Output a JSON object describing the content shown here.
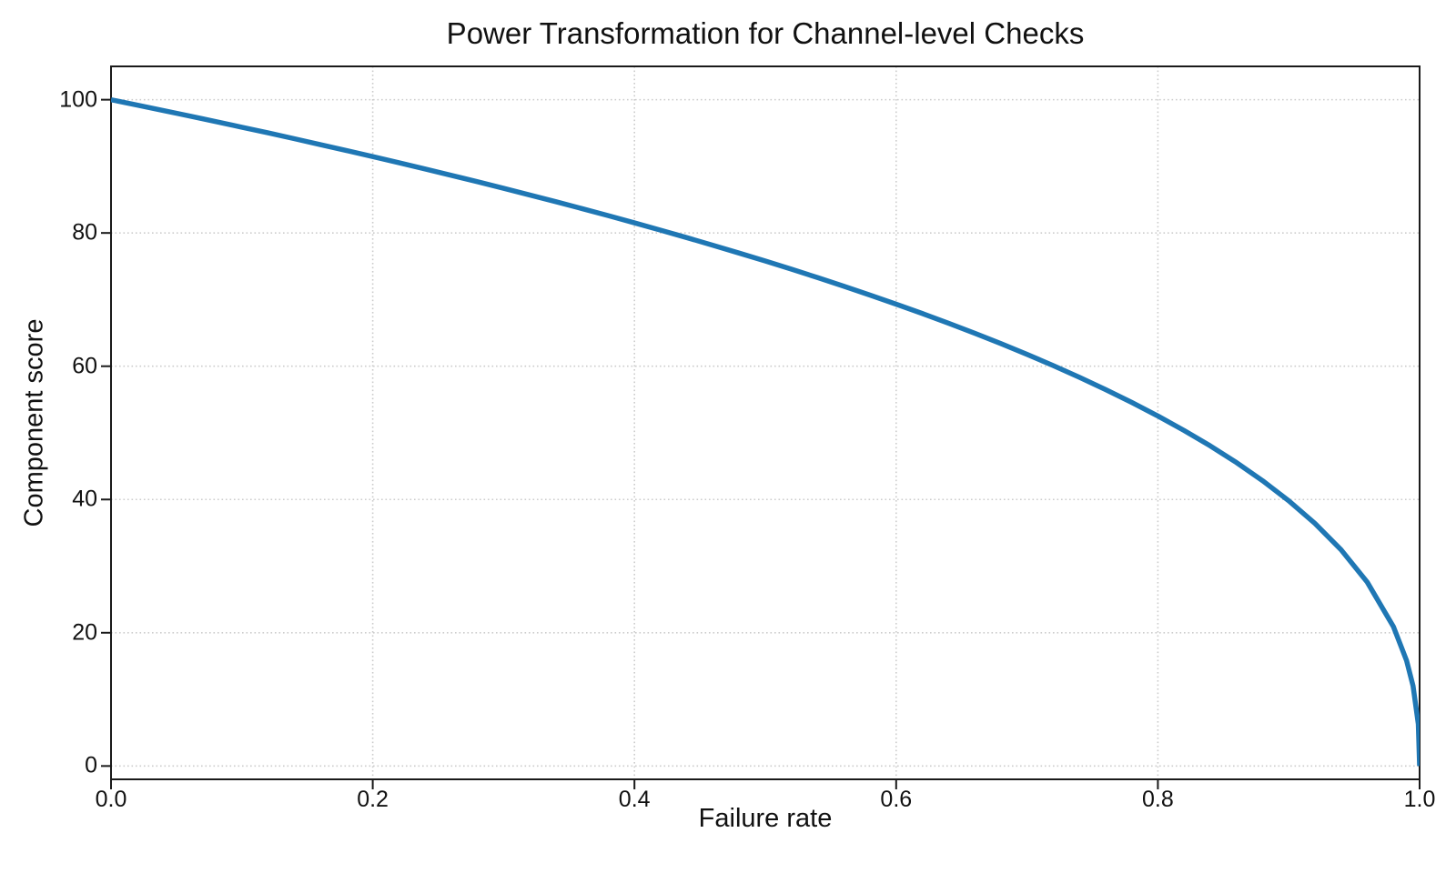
{
  "chart_data": {
    "type": "line",
    "title": "Power Transformation for Channel-level Checks",
    "xlabel": "Failure rate",
    "ylabel": "Component score",
    "xlim": [
      0,
      1
    ],
    "ylim": [
      -2,
      105
    ],
    "xticks": [
      0.0,
      0.2,
      0.4,
      0.6,
      0.8,
      1.0
    ],
    "xtick_labels": [
      "0.0",
      "0.2",
      "0.4",
      "0.6",
      "0.8",
      "1.0"
    ],
    "yticks": [
      0,
      20,
      40,
      60,
      80,
      100
    ],
    "ytick_labels": [
      "0",
      "20",
      "40",
      "60",
      "80",
      "100"
    ],
    "grid": true,
    "grid_style": "dotted",
    "legend": "none",
    "background_color": "#ffffff",
    "text_color": "#111111",
    "formula": "score = 100 * (1 - failure_rate)^0.4",
    "series": [
      {
        "name": "component-score-curve",
        "color": "#1f77b4",
        "line_width": 5.5,
        "x": [
          0,
          0.02,
          0.04,
          0.06,
          0.08,
          0.1,
          0.12,
          0.14,
          0.16,
          0.18,
          0.2,
          0.22,
          0.24,
          0.26,
          0.28,
          0.3,
          0.32,
          0.34,
          0.36,
          0.38,
          0.4,
          0.42,
          0.44,
          0.46,
          0.48,
          0.5,
          0.52,
          0.54,
          0.56,
          0.58,
          0.6,
          0.62,
          0.64,
          0.66,
          0.68,
          0.7,
          0.72,
          0.74,
          0.76,
          0.78,
          0.8,
          0.82,
          0.84,
          0.86,
          0.88,
          0.9,
          0.92,
          0.94,
          0.96,
          0.98,
          0.99,
          0.995,
          0.999,
          1.0
        ],
        "y": [
          100,
          99.19,
          98.38,
          97.56,
          96.72,
          95.87,
          95.02,
          94.15,
          93.26,
          92.37,
          91.46,
          90.54,
          89.6,
          88.65,
          87.69,
          86.7,
          85.7,
          84.69,
          83.65,
          82.6,
          81.52,
          80.42,
          79.3,
          78.15,
          76.98,
          75.79,
          74.56,
          73.3,
          72.01,
          70.68,
          69.31,
          67.91,
          66.45,
          64.95,
          63.4,
          61.78,
          60.1,
          58.34,
          56.5,
          54.57,
          52.53,
          50.36,
          48.05,
          45.55,
          42.82,
          39.81,
          36.41,
          32.45,
          27.59,
          20.91,
          15.85,
          12.01,
          6.31,
          0
        ]
      }
    ]
  }
}
